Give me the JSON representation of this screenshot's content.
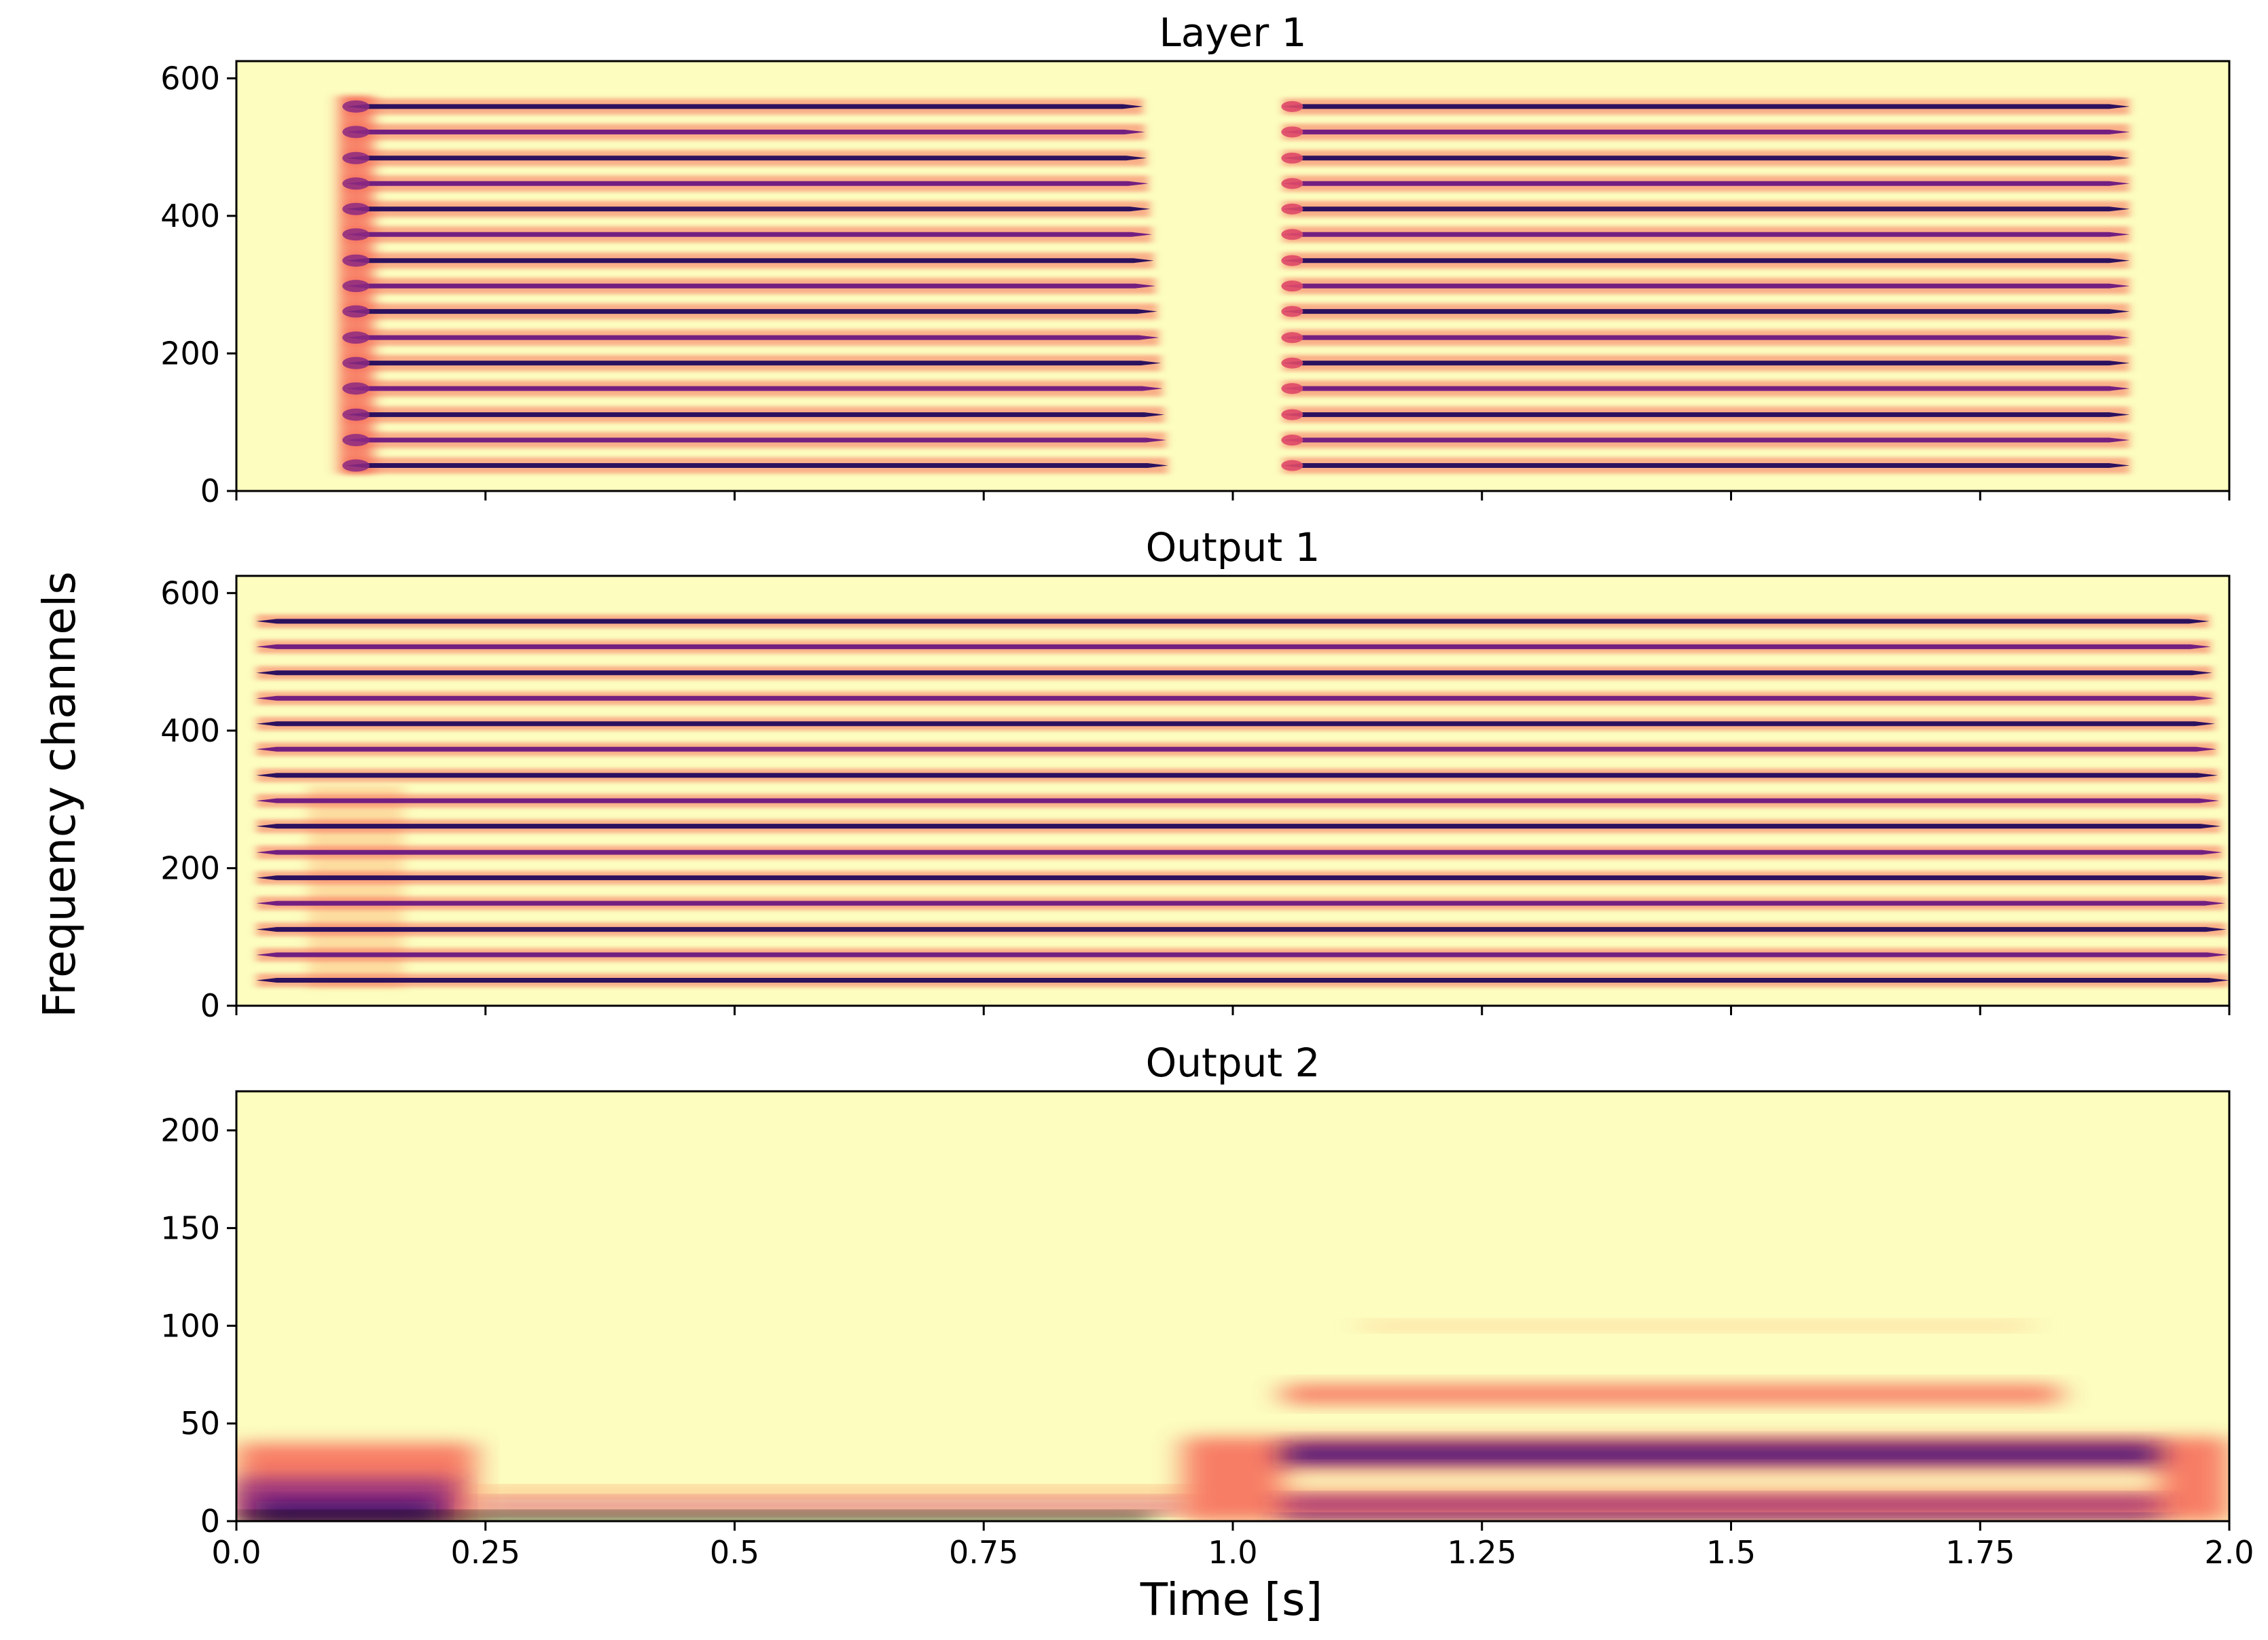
{
  "chart_data": [
    {
      "type": "heatmap",
      "title": "Layer 1",
      "xlim": [
        0,
        2.0
      ],
      "ylim": [
        0,
        625
      ],
      "yticks": [
        "0",
        "200",
        "400",
        "600"
      ],
      "yvalues": [
        0,
        200,
        400,
        600
      ],
      "xticks": [
        0.0,
        0.25,
        0.5,
        0.75,
        1.0,
        1.25,
        1.5,
        1.75,
        2.0
      ],
      "show_xtick_labels": false,
      "background": "#fcfdbf",
      "channels": [
        37,
        74,
        111,
        149,
        186,
        223,
        261,
        298,
        335,
        373,
        410,
        447,
        484,
        522,
        559
      ],
      "segments": [
        {
          "start": 0.11,
          "end_low": 0.935,
          "end_high": 0.91
        },
        {
          "start": 1.05,
          "end_low": 1.9,
          "end_high": 1.9
        }
      ],
      "onset_burst": {
        "time": 0.12,
        "from": 25,
        "to": 575
      }
    },
    {
      "type": "heatmap",
      "title": "Output 1",
      "xlim": [
        0,
        2.0
      ],
      "ylim": [
        0,
        625
      ],
      "yticks": [
        "0",
        "200",
        "400",
        "600"
      ],
      "yvalues": [
        0,
        200,
        400,
        600
      ],
      "xticks": [
        0.0,
        0.25,
        0.5,
        0.75,
        1.0,
        1.25,
        1.5,
        1.75,
        2.0
      ],
      "show_xtick_labels": false,
      "background": "#fcfdbf",
      "channels": [
        37,
        74,
        111,
        149,
        186,
        223,
        261,
        298,
        335,
        373,
        410,
        447,
        484,
        522,
        559
      ],
      "segments": [
        {
          "start": 0.02,
          "end_low": 2.0,
          "end_high": 1.98
        }
      ],
      "onset_burst": {
        "time": 0.12,
        "from": 25,
        "to": 320
      }
    },
    {
      "type": "heatmap",
      "title": "Output 2",
      "xlim": [
        0,
        2.0
      ],
      "ylim": [
        0,
        220
      ],
      "yticks": [
        "0",
        "50",
        "100",
        "150",
        "200"
      ],
      "yvalues": [
        0,
        50,
        100,
        150,
        200
      ],
      "xticks": [
        "0.0",
        "0.25",
        "0.5",
        "0.75",
        "1.0",
        "1.25",
        "1.5",
        "1.75",
        "2.0"
      ],
      "xvalues": [
        0.0,
        0.25,
        0.5,
        0.75,
        1.0,
        1.25,
        1.5,
        1.75,
        2.0
      ],
      "show_xtick_labels": true,
      "background": "#fcfdbf",
      "bands": [
        {
          "x0": 0.0,
          "x1": 0.24,
          "y0": 0,
          "y1": 40,
          "color": "#f7705c",
          "opacity": 0.9
        },
        {
          "x0": 0.0,
          "x1": 0.22,
          "y0": 0,
          "y1": 22,
          "color": "#8c2981",
          "opacity": 0.85
        },
        {
          "x0": 0.02,
          "x1": 0.2,
          "y0": 0,
          "y1": 10,
          "color": "#3b0f70",
          "opacity": 0.9
        },
        {
          "x0": 0.24,
          "x1": 0.96,
          "y0": 13,
          "y1": 17,
          "color": "#fd9f6c",
          "opacity": 0.9
        },
        {
          "x0": 0.24,
          "x1": 0.96,
          "y0": 5,
          "y1": 11,
          "color": "#de4968",
          "opacity": 0.85
        },
        {
          "x0": 0.0,
          "x1": 0.92,
          "y0": 0,
          "y1": 4,
          "color": "#000004",
          "opacity": 0.95
        },
        {
          "x0": 0.95,
          "x1": 2.0,
          "y0": 0,
          "y1": 43,
          "color": "#f7705c",
          "opacity": 0.9
        },
        {
          "x0": 1.05,
          "x1": 1.93,
          "y0": 28,
          "y1": 40,
          "color": "#51127c",
          "opacity": 0.95
        },
        {
          "x0": 1.05,
          "x1": 1.93,
          "y0": 15,
          "y1": 26,
          "color": "#fcfdbf",
          "opacity": 0.95
        },
        {
          "x0": 1.05,
          "x1": 1.93,
          "y0": 5,
          "y1": 12,
          "color": "#8c2981",
          "opacity": 0.9
        },
        {
          "x0": 1.05,
          "x1": 1.93,
          "y0": 0,
          "y1": 3,
          "color": "#3b0f70",
          "opacity": 0.9
        },
        {
          "x0": 1.05,
          "x1": 1.83,
          "y0": 60,
          "y1": 70,
          "color": "#f7705c",
          "opacity": 0.9
        },
        {
          "x0": 1.13,
          "x1": 1.8,
          "y0": 98,
          "y1": 102,
          "color": "#fecf92",
          "opacity": 0.9
        }
      ]
    }
  ],
  "ylabel": "Frequency channels",
  "xlabel": "Time [s]"
}
